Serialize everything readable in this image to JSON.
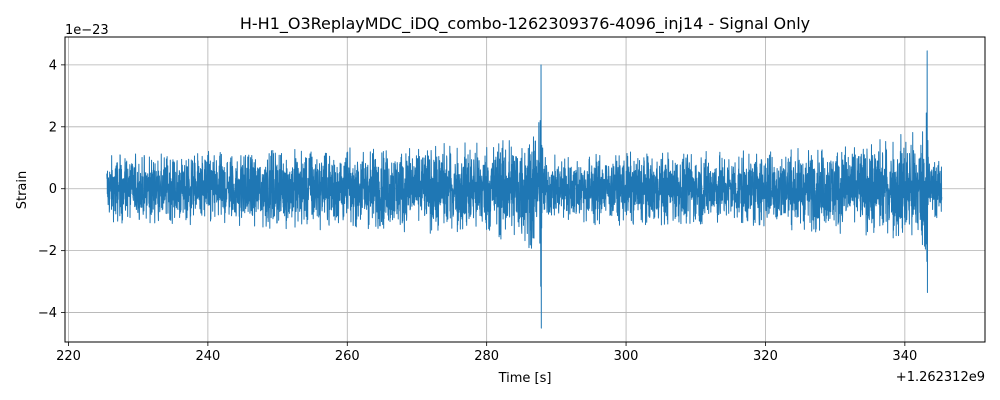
{
  "chart_data": {
    "type": "line",
    "title": "H-H1_O3ReplayMDC_iDQ_combo-1262309376-4096_inj14 - Signal Only",
    "xlabel": "Time [s]",
    "ylabel": "Strain",
    "x_offset_label": "+1.262312e9",
    "y_scale_label": "1e−23",
    "xlim": [
      219.5,
      351.5
    ],
    "ylim": [
      -4.95,
      4.9
    ],
    "x_ticks": [
      220,
      240,
      260,
      280,
      300,
      320,
      340
    ],
    "x_tick_labels": [
      "220",
      "240",
      "260",
      "280",
      "300",
      "320",
      "340"
    ],
    "y_ticks": [
      -4,
      -2,
      0,
      2,
      4
    ],
    "y_tick_labels": [
      "−4",
      "−2",
      "0",
      "2",
      "4"
    ],
    "grid": true,
    "series": [
      {
        "color": "#1f77b4",
        "x_range": [
          225.5,
          345.3
        ],
        "noise_amplitude_envelope": [
          {
            "x": 225.5,
            "amp": 1.1
          },
          {
            "x": 250,
            "amp": 1.3
          },
          {
            "x": 270,
            "amp": 1.4
          },
          {
            "x": 280,
            "amp": 1.6
          },
          {
            "x": 286,
            "amp": 2.0
          },
          {
            "x": 287.9,
            "amp": 2.4
          },
          {
            "x": 288.1,
            "amp": 1.1
          },
          {
            "x": 300,
            "amp": 1.2
          },
          {
            "x": 320,
            "amp": 1.3
          },
          {
            "x": 335,
            "amp": 1.5
          },
          {
            "x": 342,
            "amp": 2.0
          },
          {
            "x": 343.3,
            "amp": 2.5
          },
          {
            "x": 343.5,
            "amp": 1.0
          },
          {
            "x": 345.3,
            "amp": 1.0
          }
        ],
        "peaks": [
          {
            "x": 287.8,
            "max": 4.0,
            "min": -4.5
          },
          {
            "x": 343.2,
            "max": 4.45,
            "min": -3.35
          }
        ]
      }
    ]
  }
}
